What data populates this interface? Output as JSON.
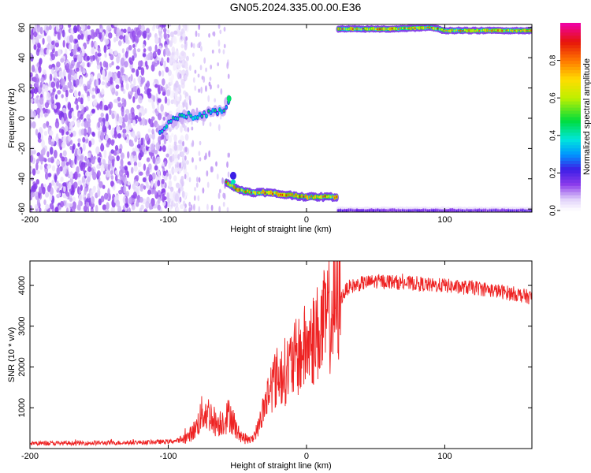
{
  "title": "GN05.2024.335.00.00.E36",
  "chart_data": [
    {
      "type": "heatmap",
      "xlabel": "Height of straight line (km)",
      "ylabel": "Frequency (Hz)",
      "xlim": [
        -200,
        163
      ],
      "ylim": [
        -62,
        62
      ],
      "xticks": [
        -200,
        -100,
        0,
        100
      ],
      "yticks": [
        -60,
        -40,
        -20,
        0,
        20,
        40,
        60
      ],
      "colorbar": {
        "label": "Normalized spectral amplitude",
        "ticks": [
          "0.0",
          "0.2",
          "0.4",
          "0.6",
          "0.8"
        ],
        "tick_values": [
          0,
          0.2,
          0.4,
          0.6,
          0.8
        ],
        "range": [
          0,
          1
        ]
      },
      "features": [
        {
          "desc": "broadband low-amplitude noise",
          "x_range": [
            -200,
            -92
          ],
          "y_range": [
            -62,
            62
          ],
          "amplitude": 0.08
        },
        {
          "desc": "upper drifting line",
          "x": [
            -106,
            -100,
            -90,
            -80,
            -70,
            -60,
            -55
          ],
          "y": [
            -10,
            -3,
            1,
            2,
            3,
            6,
            14
          ],
          "amplitude": 0.45
        },
        {
          "desc": "lower constant line",
          "x": [
            -58,
            -50,
            -40,
            -30,
            -20,
            -10,
            0,
            10,
            23
          ],
          "y": [
            -42,
            -47,
            -49,
            -49,
            -50,
            -51,
            -52,
            -52,
            -52
          ],
          "amplitude": 0.9
        },
        {
          "desc": "top edge line",
          "x": [
            23,
            60,
            90,
            100,
            130,
            163
          ],
          "y": [
            59,
            59,
            60,
            58,
            58,
            58
          ],
          "amplitude": 0.85
        },
        {
          "desc": "bottom edge line",
          "x": [
            23,
            60,
            90,
            100,
            130,
            163
          ],
          "y": [
            -61,
            -61,
            -61,
            -61,
            -61,
            -61
          ],
          "amplitude": 0.2
        }
      ]
    },
    {
      "type": "line",
      "xlabel": "Height of straight line (km)",
      "ylabel": "SNR (10 * v/v)",
      "xlim": [
        -200,
        163
      ],
      "ylim": [
        0,
        4600
      ],
      "xticks": [
        -200,
        -100,
        0,
        100
      ],
      "yticks": [
        1000,
        2000,
        3000,
        4000
      ],
      "series": [
        {
          "color": "#ee2222",
          "x": [
            -200,
            -180,
            -160,
            -140,
            -120,
            -100,
            -92,
            -86,
            -80,
            -75,
            -70,
            -65,
            -60,
            -55,
            -50,
            -45,
            -40,
            -35,
            -30,
            -25,
            -20,
            -15,
            -10,
            -5,
            0,
            5,
            10,
            15,
            20,
            25,
            30,
            40,
            50,
            60,
            70,
            80,
            90,
            100,
            110,
            120,
            130,
            140,
            150,
            163
          ],
          "y": [
            130,
            130,
            135,
            140,
            150,
            170,
            200,
            280,
            500,
            900,
            850,
            600,
            700,
            850,
            400,
            250,
            200,
            500,
            1100,
            1600,
            1800,
            1900,
            2100,
            2300,
            2500,
            2700,
            2900,
            3150,
            3400,
            3700,
            3950,
            4050,
            4100,
            4100,
            4050,
            4050,
            4000,
            4000,
            3950,
            3950,
            3900,
            3850,
            3800,
            3700
          ]
        }
      ]
    }
  ]
}
